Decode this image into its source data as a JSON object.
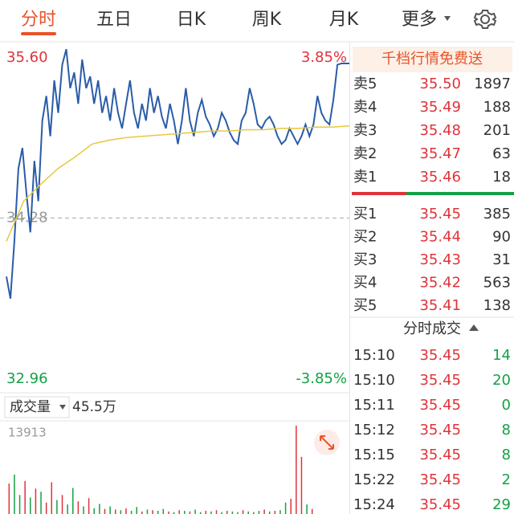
{
  "tabs": [
    "分时",
    "五日",
    "日K",
    "周K",
    "月K",
    "更多"
  ],
  "order_banner": "千档行情免费送",
  "order_book": {
    "asks": [
      {
        "label": "卖5",
        "price": "35.50",
        "volume": "1897"
      },
      {
        "label": "卖4",
        "price": "35.49",
        "volume": "188"
      },
      {
        "label": "卖3",
        "price": "35.48",
        "volume": "201"
      },
      {
        "label": "卖2",
        "price": "35.47",
        "volume": "63"
      },
      {
        "label": "卖1",
        "price": "35.46",
        "volume": "18"
      }
    ],
    "bids": [
      {
        "label": "买1",
        "price": "35.45",
        "volume": "385"
      },
      {
        "label": "买2",
        "price": "35.44",
        "volume": "90"
      },
      {
        "label": "买3",
        "price": "35.43",
        "volume": "31"
      },
      {
        "label": "买4",
        "price": "35.42",
        "volume": "563"
      },
      {
        "label": "买5",
        "price": "35.41",
        "volume": "138"
      }
    ]
  },
  "trades": {
    "title": "分时成交",
    "rows": [
      {
        "time": "15:10",
        "price": "35.45",
        "volume": "14"
      },
      {
        "time": "15:10",
        "price": "35.45",
        "volume": "20"
      },
      {
        "time": "15:11",
        "price": "35.45",
        "volume": "0"
      },
      {
        "time": "15:12",
        "price": "35.45",
        "volume": "8"
      },
      {
        "time": "15:15",
        "price": "35.45",
        "volume": "8"
      },
      {
        "time": "15:22",
        "price": "35.45",
        "volume": "2"
      },
      {
        "time": "15:24",
        "price": "35.45",
        "volume": "29"
      }
    ]
  },
  "chart_data": [
    {
      "type": "line",
      "ylim": [
        32.96,
        35.6
      ],
      "yticks": [
        {
          "value": 35.6,
          "label": "35.60"
        },
        34.28,
        {
          "value": 32.96,
          "label": "32.96"
        }
      ],
      "y2lim": [
        -3.85,
        3.85
      ],
      "y2ticks": [
        {
          "value": 3.85,
          "label": "3.85%"
        },
        {
          "value": -3.85,
          "label": "-3.85%"
        }
      ],
      "series": [
        {
          "color": "#2a5ca8",
          "values": [
            33.83,
            33.66,
            34.1,
            34.66,
            34.82,
            34.48,
            34.17,
            34.72,
            34.41,
            35.03,
            35.22,
            34.91,
            35.34,
            35.09,
            35.46,
            35.58,
            35.28,
            35.4,
            35.16,
            35.5,
            35.28,
            35.37,
            35.16,
            35.34,
            35.09,
            35.22,
            35.03,
            35.28,
            35.09,
            34.97,
            35.16,
            35.34,
            35.09,
            34.97,
            35.16,
            35.03,
            35.28,
            35.09,
            35.22,
            35.06,
            34.97,
            35.16,
            35.03,
            34.85,
            35.03,
            35.28,
            35.03,
            34.91,
            35.09,
            35.19,
            35.06,
            35.0,
            34.91,
            34.97,
            35.09,
            35.03,
            34.94,
            34.88,
            34.85,
            35.03,
            35.09,
            35.28,
            35.16,
            35.0,
            34.97,
            35.03,
            35.06,
            35.0,
            34.91,
            34.85,
            34.88,
            34.97,
            34.91,
            34.85,
            34.91,
            35.0,
            34.91,
            35.0,
            35.22,
            35.09,
            35.03,
            35.0,
            35.19,
            35.46,
            35.47,
            35.47,
            35.47
          ]
        },
        {
          "color": "#e8c840",
          "values": [
            34.1,
            34.41,
            34.54,
            34.66,
            34.75,
            34.85,
            34.88,
            34.9,
            34.91,
            34.92,
            34.93,
            34.94,
            34.95,
            34.95,
            34.96,
            34.96,
            34.97,
            34.97,
            34.98,
            34.98,
            34.99
          ]
        }
      ]
    },
    {
      "type": "bar",
      "title": "成交量",
      "total": "45.5万",
      "ylim": [
        0,
        13913
      ],
      "yticks": [
        13913
      ],
      "values": [
        4800,
        6200,
        3000,
        5200,
        2600,
        4000,
        3500,
        1800,
        5000,
        2200,
        3000,
        1500,
        4100,
        2000,
        1200,
        2500,
        900,
        1600,
        800,
        1200,
        700,
        600,
        900,
        500,
        1100,
        400,
        700,
        600,
        500,
        800,
        400,
        300,
        600,
        500,
        400,
        700,
        300,
        500,
        400,
        600,
        300,
        500,
        400,
        300,
        600,
        400,
        300,
        500,
        700,
        400,
        500,
        600,
        1800,
        2400,
        13913,
        9000,
        1500,
        800
      ],
      "colors": [
        "#e0333a",
        "#15a046",
        "#15a046",
        "#e0333a",
        "#15a046",
        "#e0333a",
        "#15a046",
        "#e0333a",
        "#e0333a",
        "#15a046",
        "#e0333a",
        "#15a046",
        "#15a046",
        "#e0333a",
        "#15a046",
        "#e0333a",
        "#15a046",
        "#15a046",
        "#e0333a",
        "#15a046",
        "#e0333a",
        "#15a046",
        "#e0333a",
        "#15a046",
        "#15a046",
        "#e0333a",
        "#15a046",
        "#e0333a",
        "#15a046",
        "#15a046",
        "#e0333a",
        "#15a046",
        "#e0333a",
        "#15a046",
        "#e0333a",
        "#15a046",
        "#15a046",
        "#e0333a",
        "#15a046",
        "#e0333a",
        "#15a046",
        "#e0333a",
        "#15a046",
        "#15a046",
        "#e0333a",
        "#15a046",
        "#e0333a",
        "#15a046",
        "#e0333a",
        "#15a046",
        "#e0333a",
        "#15a046",
        "#15a046",
        "#e0333a",
        "#e0333a",
        "#e0333a",
        "#15a046",
        "#e0333a"
      ]
    }
  ]
}
